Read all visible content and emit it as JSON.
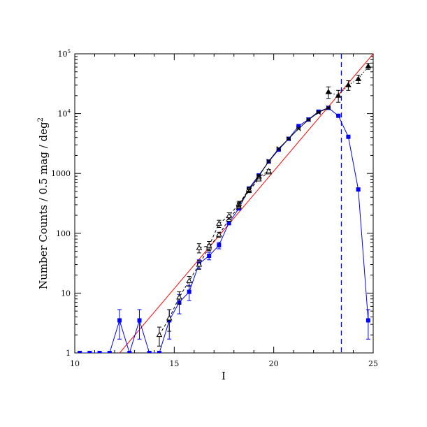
{
  "chart_data": {
    "type": "line",
    "title": "",
    "xlabel": "I",
    "ylabel": "Number Counts / 0.5 mag / deg",
    "ylabel_exponent": "2",
    "xlim": [
      10,
      25
    ],
    "ylim": [
      1,
      100000
    ],
    "yscale": "log",
    "grid": false,
    "legend": "none",
    "x_ticks": [
      10,
      15,
      20,
      25
    ],
    "x_tick_labels": [
      "10",
      "15",
      "20",
      "25"
    ],
    "y_ticks": [
      1,
      10,
      100,
      1000,
      10000,
      100000
    ],
    "y_tick_labels": [
      {
        "base": "1",
        "exp": ""
      },
      {
        "base": "10",
        "exp": ""
      },
      {
        "base": "100",
        "exp": ""
      },
      {
        "base": "1000",
        "exp": ""
      },
      {
        "base": "10",
        "exp": "4"
      },
      {
        "base": "10",
        "exp": "5"
      }
    ],
    "series": [
      {
        "style": "blue squares, solid line",
        "color": "#0000ff",
        "x": [
          10.25,
          10.75,
          11.25,
          11.75,
          12.25,
          12.75,
          13.25,
          13.75,
          14.25,
          14.75,
          15.25,
          15.75,
          16.25,
          16.75,
          17.25,
          17.75,
          18.25,
          18.75,
          19.25,
          19.75,
          20.25,
          20.75,
          21.25,
          21.75,
          22.25,
          22.75,
          23.25,
          23.75,
          24.25,
          24.75
        ],
        "y": [
          1,
          1,
          1,
          1,
          3.5,
          1,
          3.5,
          1,
          1,
          3.5,
          7,
          10.5,
          31,
          42,
          63,
          150,
          260,
          560,
          930,
          1580,
          2500,
          3800,
          6200,
          8000,
          10800,
          12500,
          9200,
          4100,
          540,
          3.5
        ],
        "err_low": [
          0,
          0,
          0,
          0,
          1.8,
          0,
          1.8,
          0,
          0,
          1.8,
          2.5,
          3,
          5,
          6,
          8,
          12,
          16,
          24,
          30,
          40,
          50,
          62,
          79,
          89,
          104,
          112,
          96,
          64,
          23,
          1.8
        ],
        "err_high": [
          0,
          0,
          0,
          0,
          1.8,
          0,
          1.8,
          0,
          0,
          1.8,
          2.5,
          3,
          5,
          6,
          8,
          12,
          16,
          24,
          30,
          40,
          50,
          62,
          79,
          89,
          104,
          112,
          96,
          64,
          23,
          1.8
        ]
      },
      {
        "style": "open triangles, dashed line",
        "color": "#000000",
        "x": [
          14.25,
          14.75,
          15.25,
          15.75,
          16.25,
          16.75,
          17.25,
          17.75,
          18.25,
          18.75,
          19.25,
          19.75
        ],
        "y": [
          2,
          3.8,
          8.5,
          16,
          30,
          58,
          95,
          170,
          280,
          510,
          800,
          1050
        ],
        "err_low": [
          0.7,
          1.5,
          2,
          3,
          5,
          7,
          9,
          12,
          16,
          22,
          28,
          32
        ],
        "err_high": [
          0.7,
          1.5,
          2,
          3,
          5,
          7,
          9,
          12,
          16,
          22,
          28,
          32
        ]
      },
      {
        "style": "open triangles with error bars, dashed line",
        "color": "#000000",
        "x": [
          16.25,
          16.75,
          17.25,
          17.75,
          18.25,
          18.75,
          19.25,
          19.75
        ],
        "y": [
          57,
          62,
          145,
          195,
          310,
          540,
          870,
          1100
        ],
        "err_low": [
          10,
          11,
          20,
          25,
          32,
          45,
          55,
          60
        ],
        "err_high": [
          10,
          11,
          20,
          25,
          32,
          45,
          55,
          60
        ]
      },
      {
        "style": "crosses, solid line",
        "color": "#000000",
        "x": [
          18.25,
          18.75,
          19.25,
          19.75,
          20.25,
          20.75,
          21.25,
          21.75,
          22.25,
          22.75
        ],
        "y": [
          300,
          520,
          900,
          1600,
          2600,
          3800,
          5600,
          7900,
          10500,
          12500
        ],
        "err_low": [
          25,
          35,
          45,
          60,
          80,
          100,
          120,
          140,
          160,
          180
        ],
        "err_high": [
          25,
          35,
          45,
          60,
          80,
          100,
          120,
          140,
          160,
          180
        ]
      },
      {
        "style": "filled triangles, dotted line",
        "color": "#000000",
        "x": [
          22.75,
          23.25,
          23.75,
          24.25,
          24.75
        ],
        "y": [
          23000,
          20000,
          30000,
          38000,
          62000
        ],
        "err_low": [
          5000,
          4500,
          5500,
          6000,
          7000
        ],
        "err_high": [
          5000,
          4500,
          5500,
          6000,
          7000
        ]
      }
    ],
    "fit_line": {
      "color": "#ff0000",
      "x": [
        10,
        25
      ],
      "y": [
        0.13,
        100000
      ]
    },
    "completeness_limit": {
      "color": "#0000ff",
      "x": 23.4
    }
  }
}
